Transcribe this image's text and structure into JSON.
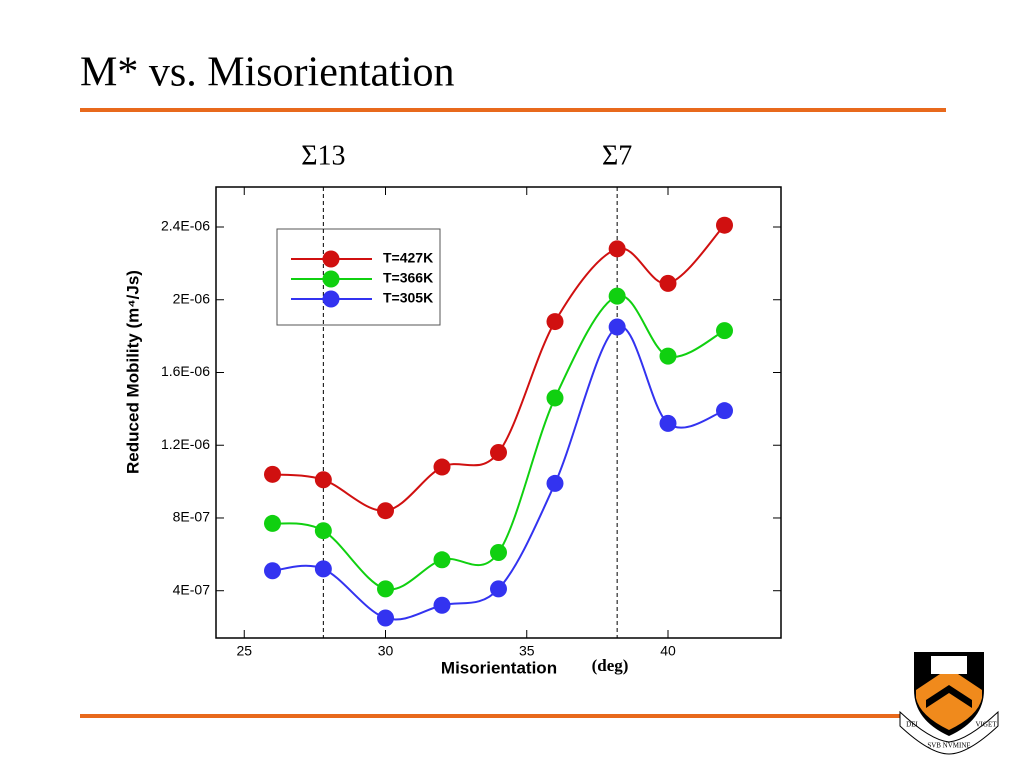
{
  "slide": {
    "title": "M* vs. Misorientation"
  },
  "chart_data": {
    "type": "line",
    "xlabel": "Misorientation",
    "xunit": "(deg)",
    "ylabel": "Reduced Mobility  (m⁴/Js)",
    "x": [
      26,
      27.8,
      30,
      32,
      34,
      36,
      38.2,
      40,
      42
    ],
    "series": [
      {
        "name": "T=427K",
        "color": "#d01010",
        "values": [
          1.04e-06,
          1.01e-06,
          8.4e-07,
          1.08e-06,
          1.16e-06,
          1.88e-06,
          2.28e-06,
          2.09e-06,
          2.41e-06
        ]
      },
      {
        "name": "T=366K",
        "color": "#10d010",
        "values": [
          7.7e-07,
          7.3e-07,
          4.1e-07,
          5.7e-07,
          6.1e-07,
          1.46e-06,
          2.02e-06,
          1.69e-06,
          1.83e-06
        ]
      },
      {
        "name": "T=305K",
        "color": "#3333f0",
        "values": [
          5.1e-07,
          5.2e-07,
          2.5e-07,
          3.2e-07,
          4.1e-07,
          9.9e-07,
          1.85e-06,
          1.32e-06,
          1.39e-06
        ]
      }
    ],
    "xlim": [
      24,
      44
    ],
    "xticks": [
      25,
      30,
      35,
      40
    ],
    "ylim": [
      1.4e-07,
      2.62e-06
    ],
    "yticks": [
      {
        "value": 4e-07,
        "label": "4E-07"
      },
      {
        "value": 8e-07,
        "label": "8E-07"
      },
      {
        "value": 1.2e-06,
        "label": "1.2E-06"
      },
      {
        "value": 1.6e-06,
        "label": "1.6E-06"
      },
      {
        "value": 2e-06,
        "label": "2E-06"
      },
      {
        "value": 2.4e-06,
        "label": "2.4E-06"
      }
    ],
    "vlines": [
      {
        "x": 27.8,
        "label": "Σ13"
      },
      {
        "x": 38.2,
        "label": "Σ7"
      }
    ],
    "legend": "upper left"
  },
  "logo": {
    "motto": [
      "DEI",
      "SVB NVMINE",
      "VIGET"
    ]
  }
}
